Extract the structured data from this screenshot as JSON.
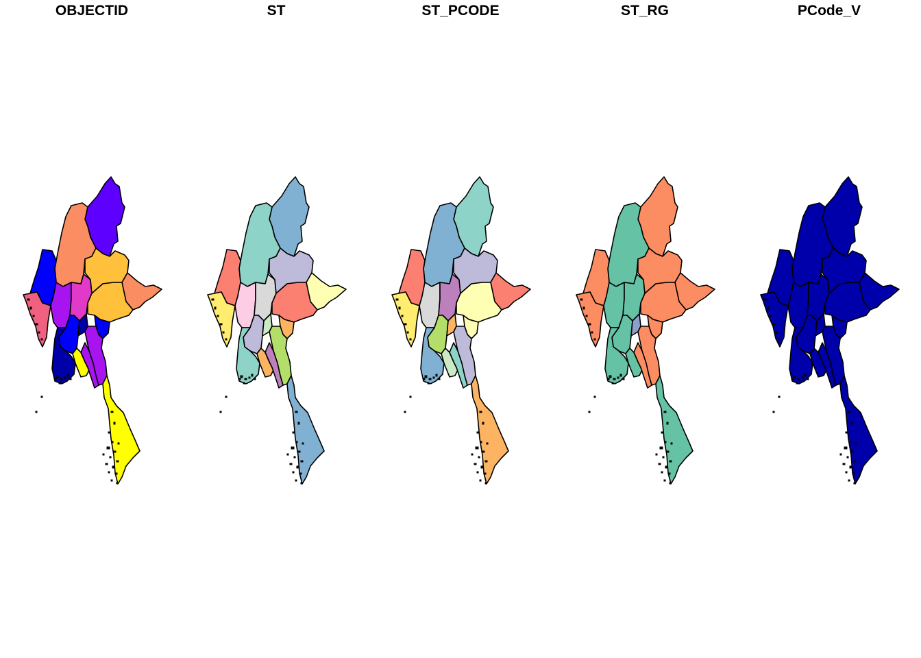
{
  "figure": {
    "type": "choropleth-small-multiples",
    "outline_color": "#000000",
    "background": "#ffffff"
  },
  "panels": [
    {
      "title": "OBJECTID",
      "colors": {
        "kachin": "#5E00FF",
        "sagaing": "#FB8D62",
        "chin": "#0000FF",
        "magway": "#A714F0",
        "mandalay": "#E23AC8",
        "shan_n": "#FFC13B",
        "shan_e": "#FB8D62",
        "shan_s": "#FFC13B",
        "rakhine": "#F06080",
        "bago": "#0000FF",
        "ayeyarwady": "#0000A8",
        "yangon": "#FFFF00",
        "naypyitaw": "#0000A8",
        "kayah": "#0000FF",
        "kayin": "#A714F0",
        "mon": "#A714F0",
        "tanintharyi": "#FFFF00"
      }
    },
    {
      "title": "ST",
      "colors": {
        "kachin": "#80B1D3",
        "sagaing": "#8DD3C7",
        "chin": "#FB8072",
        "magway": "#FCCDE5",
        "mandalay": "#D9D9D9",
        "shan_n": "#BEBADA",
        "shan_e": "#FFFFB3",
        "shan_s": "#FB8072",
        "rakhine": "#FFED6F",
        "bago": "#BEBADA",
        "ayeyarwady": "#8DD3C7",
        "yangon": "#FDB462",
        "naypyitaw": "#CCEBC5",
        "kayah": "#FDB462",
        "kayin": "#B3DE69",
        "mon": "#BC80BD",
        "tanintharyi": "#80B1D3"
      }
    },
    {
      "title": "ST_PCODE",
      "colors": {
        "kachin": "#8DD3C7",
        "sagaing": "#80B1D3",
        "chin": "#FB8072",
        "magway": "#D9D9D9",
        "mandalay": "#BC80BD",
        "shan_n": "#BEBADA",
        "shan_e": "#FB8072",
        "shan_s": "#FFFFB3",
        "rakhine": "#FFED6F",
        "bago": "#B3DE69",
        "ayeyarwady": "#80B1D3",
        "yangon": "#CCEBC5",
        "naypyitaw": "#FDB462",
        "kayah": "#FFFFB3",
        "kayin": "#BEBADA",
        "mon": "#8DD3C7",
        "tanintharyi": "#FDB462"
      }
    },
    {
      "title": "ST_RG",
      "colors": {
        "kachin": "#FC8D62",
        "sagaing": "#66C2A5",
        "chin": "#FC8D62",
        "magway": "#66C2A5",
        "mandalay": "#66C2A5",
        "shan_n": "#FC8D62",
        "shan_e": "#FC8D62",
        "shan_s": "#FC8D62",
        "rakhine": "#FC8D62",
        "bago": "#66C2A5",
        "ayeyarwady": "#66C2A5",
        "yangon": "#66C2A5",
        "naypyitaw": "#8DA0CB",
        "kayah": "#FC8D62",
        "kayin": "#FC8D62",
        "mon": "#FC8D62",
        "tanintharyi": "#66C2A5"
      }
    },
    {
      "title": "PCode_V",
      "colors": {
        "kachin": "#0000AA",
        "sagaing": "#0000AA",
        "chin": "#0000AA",
        "magway": "#0000AA",
        "mandalay": "#0000AA",
        "shan_n": "#0000AA",
        "shan_e": "#0000AA",
        "shan_s": "#0000AA",
        "rakhine": "#0000AA",
        "bago": "#0000AA",
        "ayeyarwady": "#0000AA",
        "yangon": "#0000AA",
        "naypyitaw": "#0000AA",
        "kayah": "#0000AA",
        "kayin": "#0000AA",
        "mon": "#0000AA",
        "tanintharyi": "#0000AA"
      }
    }
  ]
}
